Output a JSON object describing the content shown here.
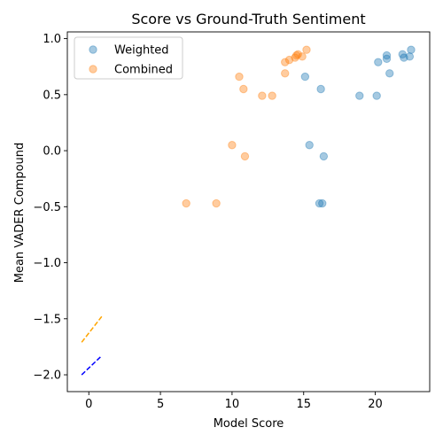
{
  "chart_data": {
    "type": "scatter",
    "title": "Score vs Ground-Truth Sentiment",
    "xlabel": "Model Score",
    "ylabel": "Mean VADER Compound",
    "xlim": [
      -1.5,
      23.8
    ],
    "ylim": [
      -2.15,
      1.06
    ],
    "xticks": [
      0,
      5,
      10,
      15,
      20
    ],
    "xtick_labels": [
      "0",
      "5",
      "10",
      "15",
      "20"
    ],
    "yticks": [
      -2.0,
      -1.5,
      -1.0,
      -0.5,
      0.0,
      0.5,
      1.0
    ],
    "ytick_labels": [
      "−2.0",
      "−1.5",
      "−1.0",
      "−0.5",
      "0.0",
      "0.5",
      "1.0"
    ],
    "grid": false,
    "legend_position": "top-left",
    "series": [
      {
        "name": "Weighted",
        "color": "#1f77b4",
        "points": [
          [
            15.1,
            0.66
          ],
          [
            15.4,
            0.05
          ],
          [
            16.1,
            -0.47
          ],
          [
            16.3,
            -0.47
          ],
          [
            16.2,
            0.55
          ],
          [
            16.4,
            -0.05
          ],
          [
            18.9,
            0.49
          ],
          [
            20.1,
            0.49
          ],
          [
            20.2,
            0.79
          ],
          [
            20.8,
            0.85
          ],
          [
            20.8,
            0.82
          ],
          [
            21.0,
            0.69
          ],
          [
            21.9,
            0.86
          ],
          [
            22.0,
            0.83
          ],
          [
            22.4,
            0.84
          ],
          [
            22.5,
            0.9
          ]
        ]
      },
      {
        "name": "Combined",
        "color": "#ff7f0e",
        "points": [
          [
            6.8,
            -0.47
          ],
          [
            8.9,
            -0.47
          ],
          [
            10.0,
            0.05
          ],
          [
            10.5,
            0.66
          ],
          [
            10.8,
            0.55
          ],
          [
            10.9,
            -0.05
          ],
          [
            12.1,
            0.49
          ],
          [
            12.8,
            0.49
          ],
          [
            13.7,
            0.69
          ],
          [
            13.7,
            0.79
          ],
          [
            14.0,
            0.81
          ],
          [
            14.4,
            0.83
          ],
          [
            14.5,
            0.85
          ],
          [
            14.6,
            0.86
          ],
          [
            14.9,
            0.84
          ],
          [
            15.2,
            0.9
          ]
        ]
      }
    ],
    "reference_lines": [
      {
        "color": "#ffa500",
        "style": "dashed",
        "x": [
          -0.5,
          0.9
        ],
        "y": [
          -1.71,
          -1.48
        ]
      },
      {
        "color": "#0000ff",
        "style": "dashed",
        "x": [
          -0.5,
          0.9
        ],
        "y": [
          -2.0,
          -1.83
        ]
      }
    ]
  }
}
